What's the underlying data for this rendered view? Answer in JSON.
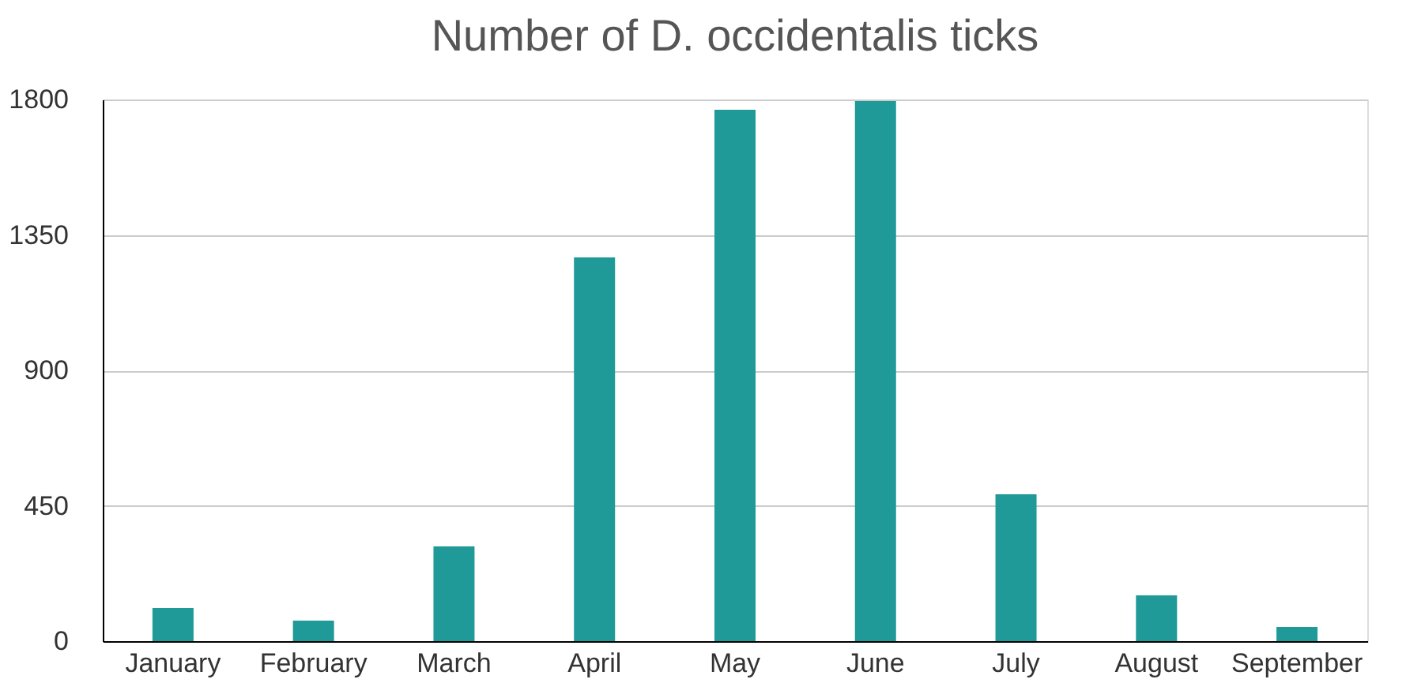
{
  "chart_data": {
    "type": "bar",
    "title": "Number of D. occidentalis ticks",
    "categories": [
      "January",
      "February",
      "March",
      "April",
      "May",
      "June",
      "July",
      "August",
      "September"
    ],
    "values": [
      110,
      68,
      315,
      1275,
      1766,
      1795,
      488,
      152,
      47
    ],
    "color": "#1f9a98",
    "ylim": [
      0,
      1800
    ],
    "yticks": [
      0,
      450,
      900,
      1350,
      1800
    ],
    "grid": "y"
  }
}
